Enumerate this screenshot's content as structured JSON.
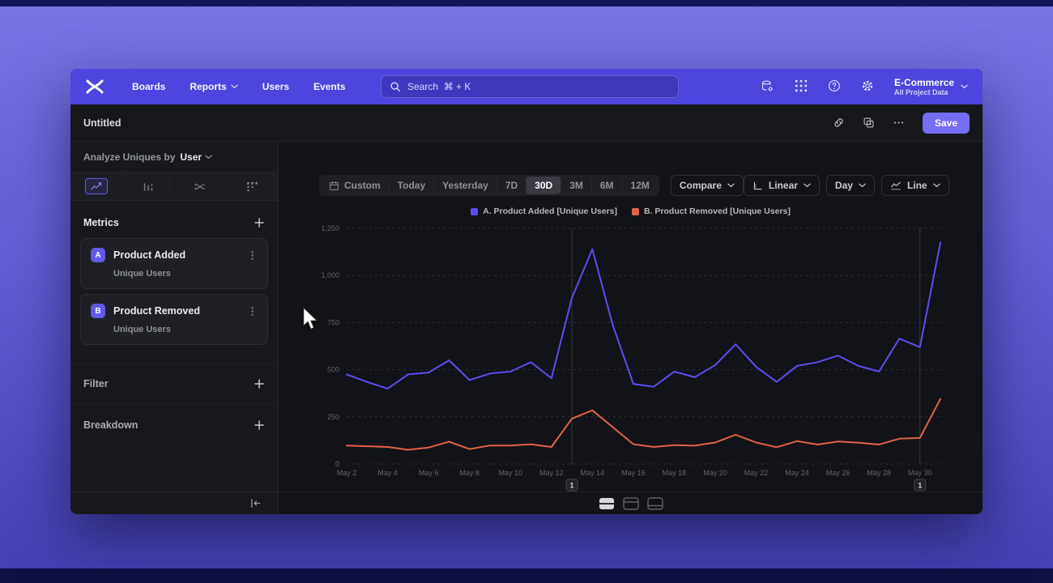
{
  "navbar": {
    "items": [
      {
        "label": "Boards",
        "chevron": false
      },
      {
        "label": "Reports",
        "chevron": true
      },
      {
        "label": "Users",
        "chevron": false
      },
      {
        "label": "Events",
        "chevron": false
      }
    ],
    "search_placeholder": "Search  ⌘ + K",
    "icons": [
      "data-governance",
      "apps-grid",
      "help",
      "settings"
    ],
    "project": {
      "name": "E-Commerce",
      "subtitle": "All Project Data"
    }
  },
  "toolbar": {
    "title": "Untitled",
    "icons": [
      "link",
      "duplicate",
      "more"
    ],
    "save_label": "Save"
  },
  "sidebar": {
    "analyze_label": "Analyze Uniques by",
    "analyze_value": "User",
    "tabs": [
      {
        "name": "insights",
        "selected": true
      },
      {
        "name": "bar-chart",
        "selected": false
      },
      {
        "name": "flows",
        "selected": false
      },
      {
        "name": "retention",
        "selected": false
      }
    ],
    "metrics": {
      "header": "Metrics",
      "items": [
        {
          "badge": "A",
          "name": "Product Added",
          "subtitle": "Unique Users"
        },
        {
          "badge": "B",
          "name": "Product Removed",
          "subtitle": "Unique Users"
        }
      ]
    },
    "sections": [
      {
        "label": "Filter"
      },
      {
        "label": "Breakdown"
      }
    ]
  },
  "chart_toolbar": {
    "ranges": [
      "Custom",
      "Today",
      "Yesterday",
      "7D",
      "30D",
      "3M",
      "6M",
      "12M"
    ],
    "selected_range": "30D",
    "compare_label": "Compare",
    "scale_label": "Linear",
    "interval_label": "Day",
    "type_label": "Line"
  },
  "chart_data": {
    "type": "line",
    "title": "",
    "xlabel": "",
    "ylabel": "",
    "x": [
      "May 2",
      "May 3",
      "May 4",
      "May 5",
      "May 6",
      "May 7",
      "May 8",
      "May 9",
      "May 10",
      "May 11",
      "May 12",
      "May 13",
      "May 14",
      "May 15",
      "May 16",
      "May 17",
      "May 18",
      "May 19",
      "May 20",
      "May 21",
      "May 22",
      "May 23",
      "May 24",
      "May 25",
      "May 26",
      "May 27",
      "May 28",
      "May 29",
      "May 30",
      "May 31"
    ],
    "x_tick_every": 2,
    "ylim": [
      0,
      1250
    ],
    "yticks": [
      {
        "value": 0,
        "label": "0"
      },
      {
        "value": 250,
        "label": "250"
      },
      {
        "value": 500,
        "label": "500"
      },
      {
        "value": 750,
        "label": "750"
      },
      {
        "value": 1000,
        "label": "1,000"
      },
      {
        "value": 1250,
        "label": "1,250"
      }
    ],
    "grid": "dashed-horizontal",
    "legend_position": "top-center",
    "series": [
      {
        "name": "A. Product Added [Unique Users]",
        "color": "#5b4ff2",
        "values": [
          475,
          435,
          400,
          475,
          485,
          550,
          445,
          480,
          490,
          540,
          455,
          880,
          1140,
          735,
          425,
          410,
          490,
          460,
          525,
          635,
          515,
          435,
          520,
          540,
          575,
          520,
          490,
          665,
          620,
          1175
        ]
      },
      {
        "name": "B. Product Removed [Unique Users]",
        "color": "#e06349",
        "values": [
          98,
          94,
          90,
          75,
          87,
          118,
          79,
          98,
          98,
          104,
          90,
          240,
          285,
          195,
          105,
          90,
          100,
          97,
          114,
          155,
          114,
          89,
          121,
          103,
          119,
          113,
          103,
          134,
          138,
          345
        ]
      }
    ]
  },
  "annotations": [
    {
      "label": "1",
      "date": "May 13"
    },
    {
      "label": "1",
      "date": "May 30"
    }
  ],
  "footer": {
    "layouts": [
      "split",
      "chart-top",
      "chart-bottom"
    ],
    "selected_layout": "split"
  },
  "colors": {
    "navbar": "#4d45dd",
    "accent": "#6159ee",
    "save_button": "#756df3",
    "series_a": "#5b4ff2",
    "series_b": "#e06349",
    "grid_line": "#2e2f35",
    "axis_text": "#64666c"
  }
}
